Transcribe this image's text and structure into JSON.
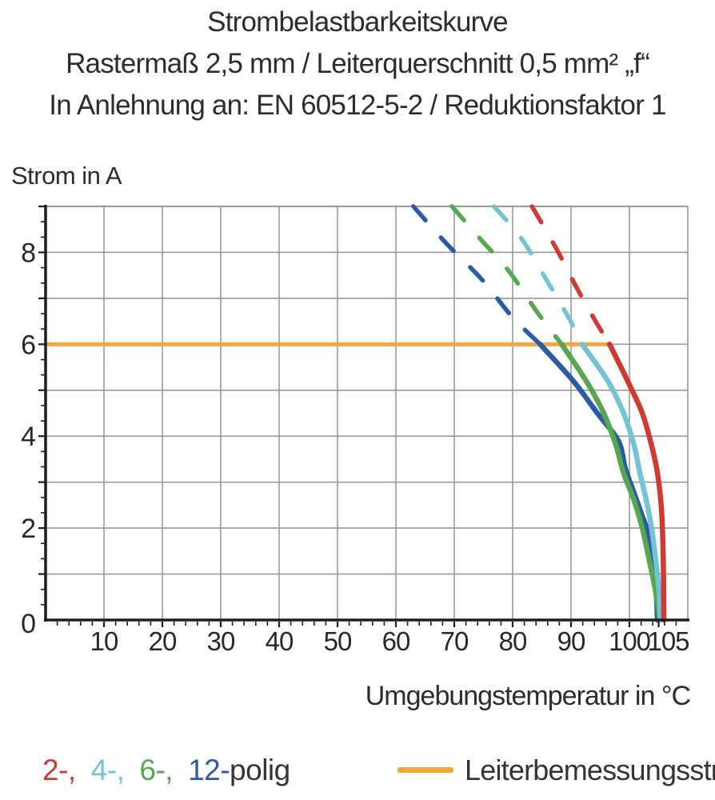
{
  "title": {
    "line1": "Strombelastbarkeitskurve",
    "line2": "Rastermaß 2,5 mm / Leiterquerschnitt 0,5 mm² „f“",
    "line3": "In Anlehnung an: EN 60512-5-2 / Reduktionsfaktor 1"
  },
  "legend": {
    "pole_items": [
      {
        "label": "2-,",
        "series": "2-polig",
        "color": "#d13a31"
      },
      {
        "label": "4-,",
        "series": "4-polig",
        "color": "#72c3d4"
      },
      {
        "label": "6-,",
        "series": "6-polig",
        "color": "#55a84f"
      },
      {
        "label": "12-",
        "series": "12-polig",
        "color": "#2d5aa6"
      }
    ],
    "pole_suffix": "polig",
    "rated_current_label": "Leiterbemessungsstrom",
    "rated_current_color": "#f2a83c"
  },
  "chart_data": {
    "type": "line",
    "title": "Strombelastbarkeitskurve",
    "xlabel": "Umgebungstemperatur in °C",
    "ylabel": "Strom in A",
    "xlim": [
      0,
      110
    ],
    "ylim": [
      0,
      9
    ],
    "grid": true,
    "x_ticks": [
      10,
      20,
      30,
      40,
      50,
      60,
      70,
      80,
      90,
      100,
      105
    ],
    "y_ticks": [
      0,
      2,
      4,
      6,
      8
    ],
    "x_minor_step": 2,
    "y_minor_step": 0.3333,
    "rated_line": {
      "label": "Leiterbemessungsstrom",
      "current_A": 6,
      "x_range": [
        0,
        96.6
      ],
      "color": "#f2a83c"
    },
    "dashed_above_A": 6,
    "series": [
      {
        "name": "2-polig",
        "color": "#d13a31",
        "points_dashed": [
          [
            83.3,
            9.0
          ],
          [
            87.4,
            8.1
          ],
          [
            91.1,
            7.2
          ],
          [
            94.2,
            6.5
          ],
          [
            96.6,
            6.0
          ]
        ],
        "points_solid": [
          [
            96.6,
            6.0
          ],
          [
            99.7,
            5.2
          ],
          [
            102.2,
            4.5
          ],
          [
            103.8,
            3.8
          ],
          [
            104.8,
            3.2
          ],
          [
            105.5,
            2.4
          ],
          [
            105.8,
            1.3
          ],
          [
            105.9,
            0.0
          ]
        ]
      },
      {
        "name": "4-polig",
        "color": "#72c3d4",
        "points_dashed": [
          [
            76.8,
            9.0
          ],
          [
            81.5,
            8.3
          ],
          [
            85.8,
            7.4
          ],
          [
            89.5,
            6.6
          ],
          [
            91.9,
            6.0
          ]
        ],
        "points_solid": [
          [
            91.9,
            6.0
          ],
          [
            96.3,
            5.2
          ],
          [
            99.0,
            4.5
          ],
          [
            100.8,
            3.8
          ],
          [
            101.8,
            3.2
          ],
          [
            102.9,
            2.6
          ],
          [
            103.8,
            2.0
          ],
          [
            104.5,
            1.3
          ],
          [
            105.1,
            0.6
          ],
          [
            105.3,
            0.0
          ]
        ]
      },
      {
        "name": "6-polig",
        "color": "#55a84f",
        "points_dashed": [
          [
            69.6,
            9.0
          ],
          [
            74.4,
            8.3
          ],
          [
            79.3,
            7.6
          ],
          [
            84.2,
            6.7
          ],
          [
            88.4,
            6.0
          ]
        ],
        "points_solid": [
          [
            88.4,
            6.0
          ],
          [
            92.6,
            5.2
          ],
          [
            95.6,
            4.5
          ],
          [
            97.7,
            3.8
          ],
          [
            99.0,
            3.2
          ],
          [
            100.8,
            2.6
          ],
          [
            102.2,
            2.0
          ],
          [
            103.4,
            1.3
          ],
          [
            104.5,
            0.6
          ],
          [
            105.2,
            0.0
          ]
        ]
      },
      {
        "name": "12-polig",
        "color": "#2d5aa6",
        "points_dashed": [
          [
            63.0,
            9.0
          ],
          [
            68.6,
            8.2
          ],
          [
            74.8,
            7.4
          ],
          [
            79.9,
            6.6
          ],
          [
            84.7,
            6.0
          ]
        ],
        "points_solid": [
          [
            84.7,
            6.0
          ],
          [
            90.4,
            5.2
          ],
          [
            94.5,
            4.5
          ],
          [
            98.1,
            3.9
          ],
          [
            99.3,
            3.3
          ],
          [
            100.7,
            2.8
          ],
          [
            102.1,
            2.3
          ],
          [
            103.2,
            1.9
          ],
          [
            104.0,
            1.3
          ],
          [
            104.5,
            0.8
          ],
          [
            104.8,
            0.0
          ]
        ]
      }
    ]
  }
}
